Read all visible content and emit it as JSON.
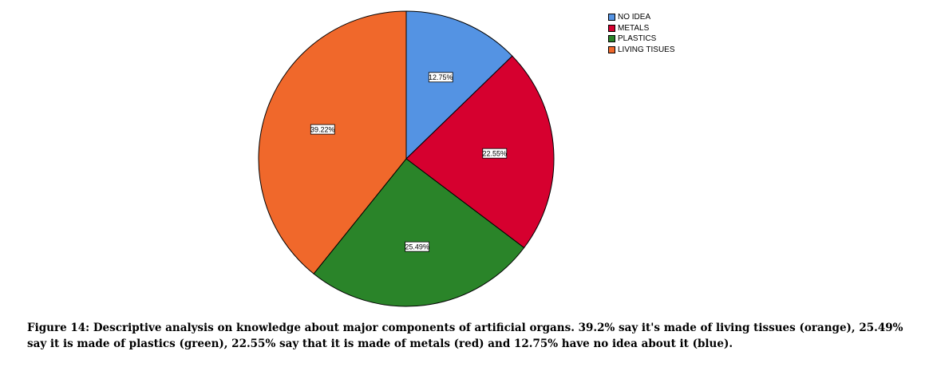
{
  "chart_data": {
    "type": "pie",
    "categories": [
      "NO IDEA",
      "METALS",
      "PLASTICS",
      "LIVING TISUES"
    ],
    "values": [
      12.75,
      22.55,
      25.49,
      39.22
    ],
    "labels": [
      "12.75%",
      "22.55%",
      "25.49%",
      "39.22%"
    ],
    "colors": [
      "#5493e3",
      "#d6002f",
      "#2a8429",
      "#f0682b"
    ],
    "legend_position": "top-right",
    "title": ""
  },
  "caption": "Figure 14: Descriptive analysis on knowledge about major components of artificial organs. 39.2% say it's made of living tissues (orange), 25.49% say it is made of plastics (green), 22.55% say that it is made of metals (red) and 12.75% have no idea about it (blue)."
}
